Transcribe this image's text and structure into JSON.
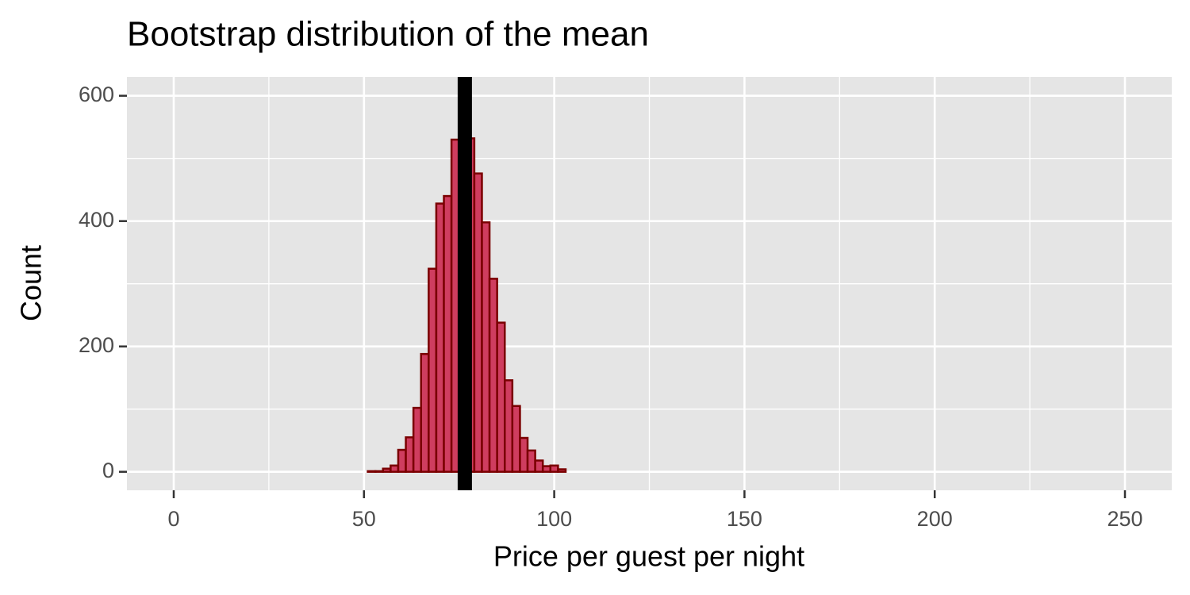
{
  "chart_data": {
    "type": "histogram",
    "title": "Bootstrap distribution of the mean",
    "x_label": "Price per guest per night",
    "y_label": "Count",
    "bins": [
      1,
      3,
      5,
      7,
      9,
      11,
      13,
      15,
      17,
      19,
      21,
      23,
      25,
      27,
      29,
      31,
      33,
      35,
      37,
      39,
      41,
      43,
      45,
      47,
      49,
      51,
      53,
      55,
      57,
      59,
      61,
      63,
      65,
      67,
      69,
      71,
      73,
      75,
      77,
      79,
      81,
      83,
      85,
      87,
      89,
      91,
      93,
      95,
      97,
      99,
      101,
      103,
      105,
      107,
      109,
      111,
      113,
      115,
      117,
      119,
      121,
      123,
      125,
      127,
      129,
      131,
      133,
      135,
      137,
      139,
      141,
      143,
      145,
      147,
      149,
      151,
      153,
      155,
      157,
      159,
      161,
      163,
      165,
      167,
      169,
      171,
      173,
      175,
      177,
      179,
      181,
      183,
      185,
      187,
      189,
      191,
      193,
      195,
      197,
      199,
      201,
      203,
      205,
      207,
      209,
      211,
      213,
      215,
      217,
      219,
      221,
      223,
      225,
      227,
      229,
      231,
      233,
      235,
      237,
      239,
      241,
      243,
      245,
      247,
      249
    ],
    "values": [
      0,
      0,
      0,
      0,
      0,
      0,
      0,
      0,
      0,
      0,
      0,
      0,
      0,
      0,
      0,
      0,
      0,
      0,
      0,
      0,
      0,
      0,
      0,
      0,
      0,
      1,
      1,
      5,
      10,
      35,
      55,
      102,
      188,
      324,
      428,
      440,
      530,
      580,
      532,
      476,
      398,
      308,
      238,
      146,
      105,
      54,
      34,
      18,
      9,
      10,
      4,
      0,
      0,
      0,
      0,
      0,
      0,
      0,
      0,
      0,
      0,
      0,
      0,
      0,
      0,
      0,
      0,
      0,
      0,
      0,
      0,
      0,
      0,
      0,
      0,
      0,
      0,
      0,
      0,
      0,
      0,
      0,
      0,
      0,
      0,
      0,
      0,
      0,
      0,
      0,
      0,
      0,
      0,
      0,
      0,
      0,
      0,
      0,
      0,
      0,
      0,
      0,
      0,
      0,
      0,
      0,
      0,
      0,
      0,
      0,
      0,
      0,
      0,
      0,
      0,
      0,
      0,
      0,
      0,
      0,
      0,
      0,
      0,
      0
    ],
    "color": "#cf3d5f",
    "edge_color": "#7a0000",
    "vline": 76.5,
    "vline_color": "#000000",
    "xlim": [
      -12.3,
      262.3
    ],
    "ylim": [
      -29.5,
      630
    ],
    "xticks": [
      0,
      50,
      100,
      150,
      200,
      250
    ],
    "yticks": [
      0,
      200,
      400,
      600
    ],
    "xminor": [
      25,
      75,
      125,
      175,
      225
    ],
    "yminor": [
      100,
      300,
      500
    ],
    "grid": true
  }
}
